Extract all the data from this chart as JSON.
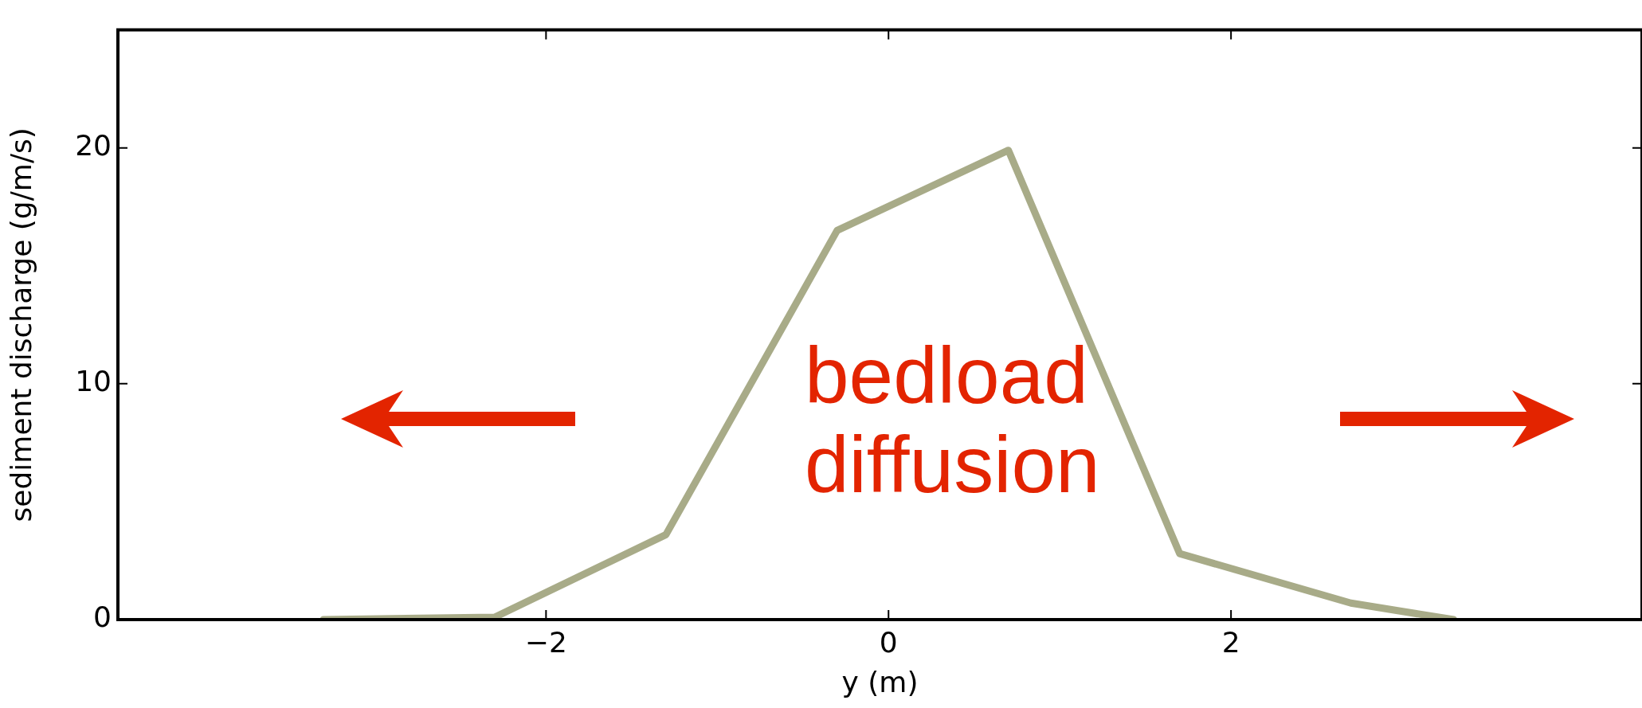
{
  "chart_data": {
    "type": "line",
    "xlabel": "y (m)",
    "ylabel": "sediment discharge (g/m/s)",
    "x": [
      -3.3,
      -2.3,
      -1.3,
      -0.3,
      0.7,
      1.7,
      2.7,
      3.3
    ],
    "series": [
      {
        "color": "#a8ab88",
        "values": [
          0,
          0.1,
          3.6,
          16.5,
          19.9,
          2.8,
          0.7,
          0
        ]
      }
    ],
    "xlim": [
      -4.5,
      4.4
    ],
    "ylim": [
      0,
      25
    ],
    "xticks": [
      {
        "value": -2,
        "label": "−2"
      },
      0,
      2
    ],
    "yticks": [
      0,
      10,
      20
    ],
    "grid": false,
    "legend": false,
    "marker": "none",
    "line_style": "solid",
    "annotations": [
      "bedload\ndiffusion"
    ]
  }
}
